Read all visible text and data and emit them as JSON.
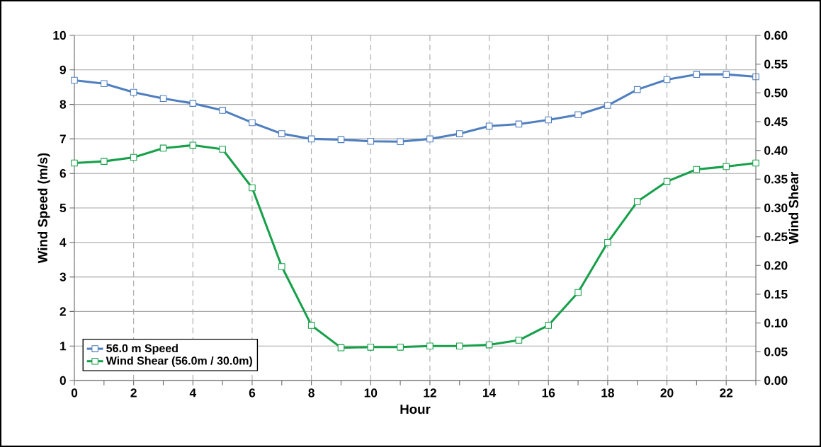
{
  "chart_data": {
    "type": "line",
    "xlabel": "Hour",
    "ylabel": "Wind Speed (m/s)",
    "y2label": "Wind Shear",
    "x": [
      0,
      1,
      2,
      3,
      4,
      5,
      6,
      7,
      8,
      9,
      10,
      11,
      12,
      13,
      14,
      15,
      16,
      17,
      18,
      19,
      20,
      21,
      22,
      23
    ],
    "series": [
      {
        "name": "56.0 m Speed",
        "color": "#4f7fbf",
        "values": [
          8.7,
          8.6,
          8.35,
          8.17,
          8.03,
          7.83,
          7.47,
          7.15,
          7.0,
          6.98,
          6.93,
          6.92,
          7.0,
          7.15,
          7.37,
          7.43,
          7.55,
          7.7,
          7.97,
          8.43,
          8.72,
          8.87,
          8.87,
          8.8
        ]
      },
      {
        "name": "Wind Shear (56.0m / 30.0m)",
        "color": "#17a04a",
        "axis": "y2",
        "values": [
          0.378,
          0.381,
          0.388,
          0.404,
          0.409,
          0.402,
          0.335,
          0.198,
          0.096,
          0.057,
          0.058,
          0.058,
          0.06,
          0.06,
          0.062,
          0.07,
          0.096,
          0.153,
          0.24,
          0.311,
          0.346,
          0.367,
          0.372,
          0.378
        ]
      }
    ],
    "xlim": [
      0,
      23
    ],
    "xticks": [
      0,
      {
        "value": 1,
        "label": null
      },
      2,
      {
        "value": 3,
        "label": null
      },
      4,
      {
        "value": 5,
        "label": null
      },
      6,
      {
        "value": 7,
        "label": null
      },
      8,
      {
        "value": 9,
        "label": null
      },
      10,
      {
        "value": 11,
        "label": null
      },
      12,
      {
        "value": 13,
        "label": null
      },
      14,
      {
        "value": 15,
        "label": null
      },
      16,
      {
        "value": 17,
        "label": null
      },
      18,
      {
        "value": 19,
        "label": null
      },
      20,
      {
        "value": 21,
        "label": null
      },
      22,
      {
        "value": 23,
        "label": null
      }
    ],
    "ylim": [
      0,
      10
    ],
    "yticks": [
      0,
      1,
      2,
      3,
      4,
      5,
      6,
      7,
      8,
      9,
      10
    ],
    "y2lim": [
      0,
      0.6
    ],
    "y2ticks": [
      {
        "value": 0,
        "label": "0.00"
      },
      {
        "value": 0.05,
        "label": "0.05"
      },
      {
        "value": 0.1,
        "label": "0.10"
      },
      {
        "value": 0.15,
        "label": "0.15"
      },
      {
        "value": 0.2,
        "label": "0.20"
      },
      {
        "value": 0.25,
        "label": "0.25"
      },
      {
        "value": 0.3,
        "label": "0.30"
      },
      {
        "value": 0.35,
        "label": "0.35"
      },
      {
        "value": 0.4,
        "label": "0.40"
      },
      {
        "value": 0.45,
        "label": "0.45"
      },
      {
        "value": 0.5,
        "label": "0.50"
      },
      {
        "value": 0.55,
        "label": "0.55"
      },
      {
        "value": 0.6,
        "label": "0.60"
      }
    ],
    "grid": true,
    "legend": "bottom left",
    "marker": "square",
    "line_style": "solid"
  }
}
